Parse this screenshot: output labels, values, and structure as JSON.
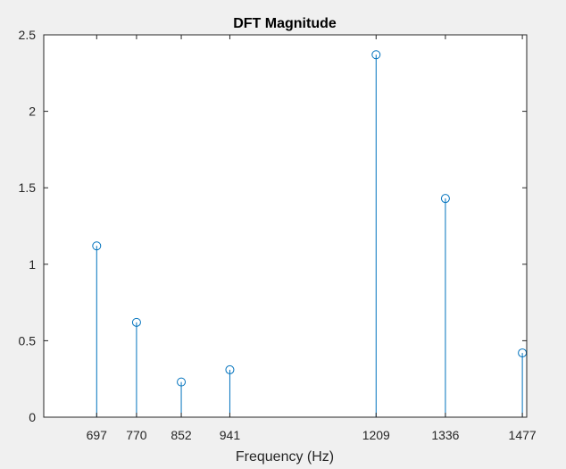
{
  "chart_data": {
    "type": "stem",
    "title": "DFT Magnitude",
    "xlabel": "Frequency (Hz)",
    "ylabel": "",
    "x": [
      697,
      770,
      852,
      941,
      1209,
      1336,
      1477
    ],
    "values": [
      1.12,
      0.62,
      0.23,
      0.31,
      2.37,
      1.43,
      0.42
    ],
    "xlim": [
      600,
      1485
    ],
    "ylim": [
      0,
      2.5
    ],
    "xticks": [
      "697",
      "770",
      "852",
      "941",
      "1209",
      "1336",
      "1477"
    ],
    "yticks": [
      "0",
      "0.5",
      "1",
      "1.5",
      "2",
      "2.5"
    ],
    "grid": false,
    "box": true,
    "colors": {
      "stem": "#0072BD",
      "axes": "#262626",
      "axes_background": "#ffffff",
      "figure_background": "#f0f0f0"
    }
  }
}
